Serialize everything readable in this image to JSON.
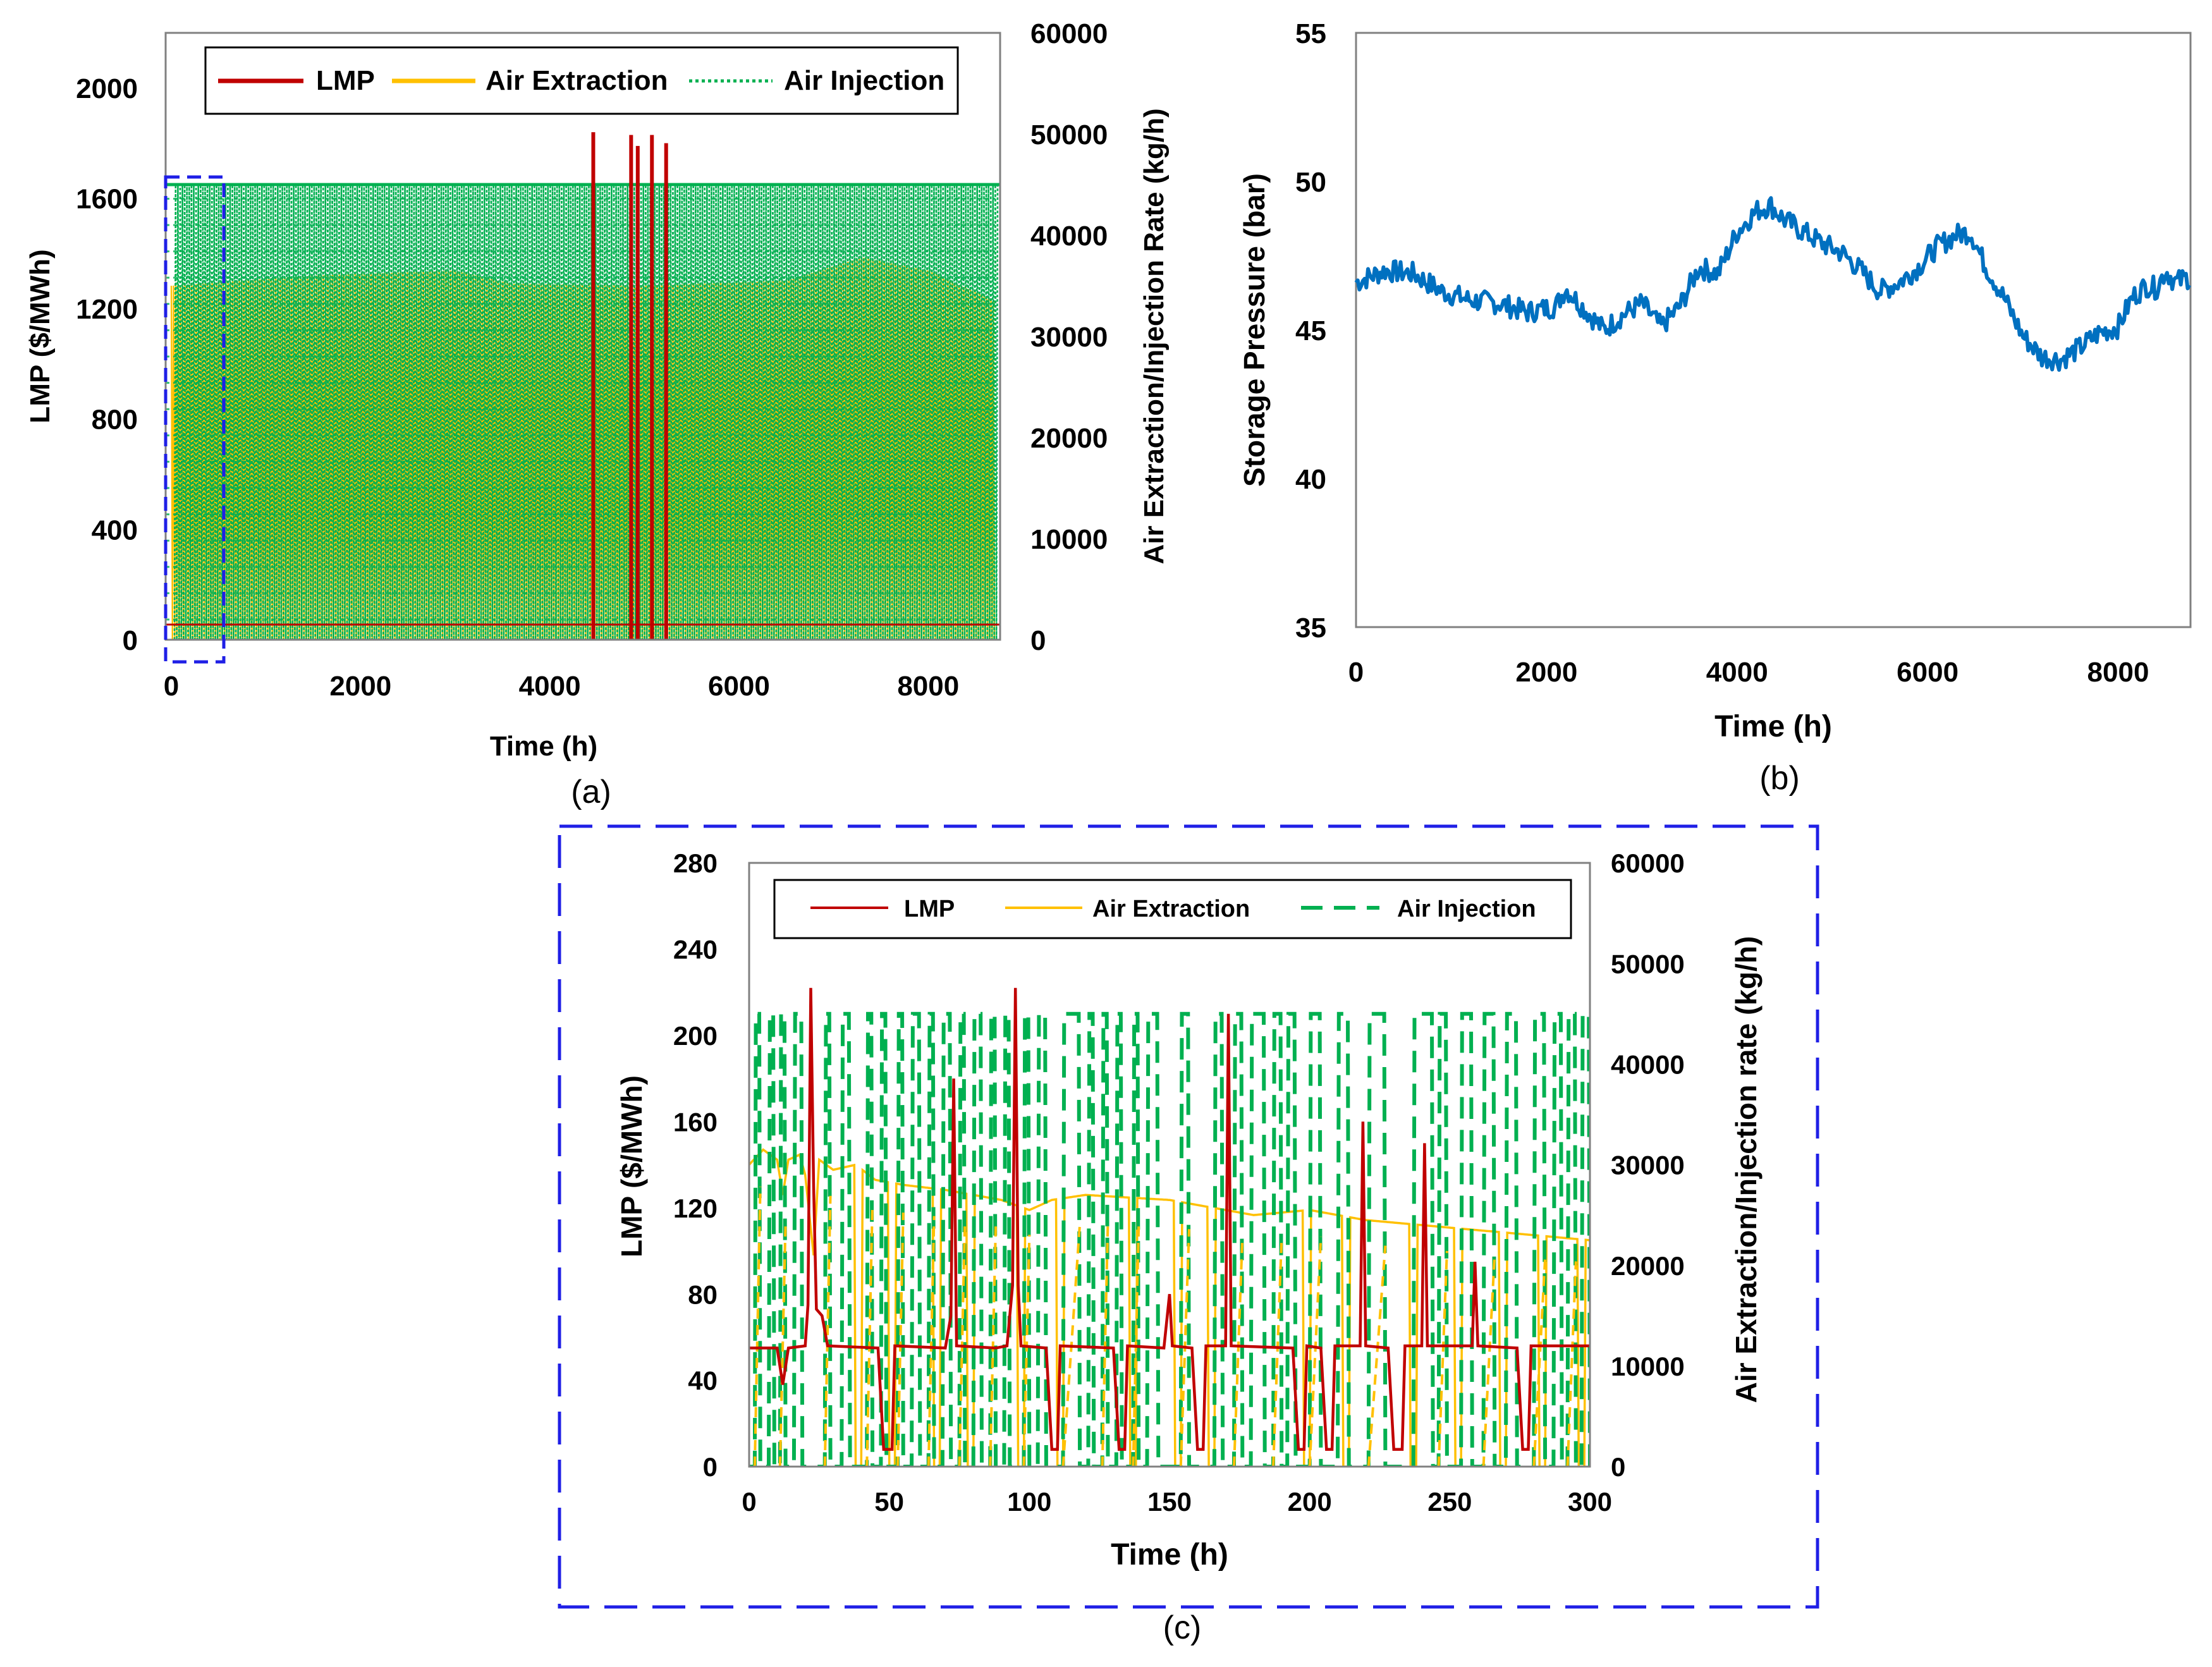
{
  "colors": {
    "lmp": "#c00000",
    "extraction": "#ffc000",
    "injection": "#00b050",
    "pressure": "#0070c0",
    "zoom_box": "#1f1fe6"
  },
  "chart_data": [
    {
      "id": "a",
      "type": "line",
      "caption": "(a)",
      "xlabel": "Time (h)",
      "ylabel": "LMP ($/MWh)",
      "y2label": "Air Extraction/Injection Rate (kg/h)",
      "xlim": [
        -60,
        8760
      ],
      "ylim": [
        0,
        2200
      ],
      "y2lim": [
        0,
        60000
      ],
      "xticks": [
        "0",
        "2000",
        "4000",
        "6000",
        "8000"
      ],
      "yticks": [
        "0",
        "400",
        "800",
        "1200",
        "1600",
        "2000"
      ],
      "y2ticks": [
        "0",
        "10000",
        "20000",
        "30000",
        "40000",
        "50000",
        "60000"
      ],
      "legend": [
        "LMP",
        "Air Extraction",
        "Air Injection"
      ],
      "series": [
        {
          "name": "LMP",
          "axis": "left",
          "baseline": 55,
          "spikes": [
            [
              4460,
              1840
            ],
            [
              4860,
              1830
            ],
            [
              4930,
              1790
            ],
            [
              5080,
              1830
            ],
            [
              5230,
              1800
            ]
          ]
        },
        {
          "name": "Air Extraction",
          "axis": "right",
          "band_max": 35000,
          "envelope": [
            [
              0,
              35000
            ],
            [
              1500,
              36000
            ],
            [
              3000,
              36500
            ],
            [
              3600,
              35200
            ],
            [
              5000,
              35000
            ],
            [
              6500,
              35500
            ],
            [
              7300,
              37800
            ],
            [
              8000,
              36500
            ],
            [
              8700,
              33500
            ]
          ]
        },
        {
          "name": "Air Injection",
          "axis": "right",
          "band_max": 45000,
          "envelope": [
            [
              0,
              45000
            ],
            [
              8760,
              45000
            ]
          ]
        }
      ]
    },
    {
      "id": "b",
      "type": "line",
      "caption": "(b)",
      "xlabel": "Time (h)",
      "ylabel": "Storage Pressure (bar)",
      "xlim": [
        0,
        8760
      ],
      "ylim": [
        35,
        55
      ],
      "xticks": [
        "0",
        "2000",
        "4000",
        "6000",
        "8000"
      ],
      "yticks": [
        "35",
        "40",
        "45",
        "50",
        "55"
      ],
      "series": [
        {
          "name": "Storage Pressure",
          "points": [
            [
              0,
              46.6
            ],
            [
              300,
              47.0
            ],
            [
              600,
              46.9
            ],
            [
              900,
              46.3
            ],
            [
              1200,
              46.0
            ],
            [
              1500,
              45.9
            ],
            [
              1800,
              45.6
            ],
            [
              2100,
              45.8
            ],
            [
              2200,
              46.4
            ],
            [
              2400,
              45.7
            ],
            [
              2600,
              45.0
            ],
            [
              2800,
              45.5
            ],
            [
              3000,
              45.9
            ],
            [
              3200,
              45.1
            ],
            [
              3400,
              45.8
            ],
            [
              3600,
              47.1
            ],
            [
              3800,
              46.9
            ],
            [
              4000,
              48.3
            ],
            [
              4200,
              49.0
            ],
            [
              4350,
              49.2
            ],
            [
              4500,
              48.7
            ],
            [
              4700,
              48.3
            ],
            [
              4900,
              47.9
            ],
            [
              5100,
              47.6
            ],
            [
              5300,
              47.0
            ],
            [
              5500,
              46.3
            ],
            [
              5700,
              46.6
            ],
            [
              5900,
              47.1
            ],
            [
              6100,
              47.8
            ],
            [
              6300,
              48.2
            ],
            [
              6450,
              48.3
            ],
            [
              6600,
              47.2
            ],
            [
              6800,
              46.1
            ],
            [
              7000,
              44.8
            ],
            [
              7200,
              44.1
            ],
            [
              7400,
              44.0
            ],
            [
              7600,
              44.4
            ],
            [
              7800,
              44.9
            ],
            [
              8000,
              45.1
            ],
            [
              8150,
              46.1
            ],
            [
              8300,
              46.5
            ],
            [
              8400,
              46.4
            ],
            [
              8500,
              47.0
            ],
            [
              8600,
              46.6
            ],
            [
              8760,
              46.8
            ]
          ]
        }
      ]
    },
    {
      "id": "c",
      "type": "line",
      "caption": "(c)",
      "xlabel": "Time (h)",
      "ylabel": "LMP ($/MWh)",
      "y2label": "Air Extraction/Injection rate (kg/h)",
      "xlim": [
        0,
        300
      ],
      "ylim": [
        0,
        280
      ],
      "y2lim": [
        0,
        60000
      ],
      "xticks": [
        "0",
        "50",
        "100",
        "150",
        "200",
        "250",
        "300"
      ],
      "yticks": [
        "0",
        "40",
        "80",
        "120",
        "160",
        "200",
        "240",
        "280"
      ],
      "y2ticks": [
        "0",
        "10000",
        "20000",
        "30000",
        "40000",
        "50000",
        "60000"
      ],
      "legend": [
        "LMP",
        "Air Extraction",
        "Air Injection"
      ],
      "series": [
        {
          "name": "LMP",
          "axis": "left",
          "points": [
            [
              0,
              55
            ],
            [
              10,
              55
            ],
            [
              12,
              38
            ],
            [
              14,
              55
            ],
            [
              20,
              56
            ],
            [
              21,
              75
            ],
            [
              22,
              222
            ],
            [
              23,
              130
            ],
            [
              24,
              73
            ],
            [
              26,
              70
            ],
            [
              28,
              56
            ],
            [
              46,
              55
            ],
            [
              48,
              8
            ],
            [
              51,
              8
            ],
            [
              52,
              56
            ],
            [
              70,
              55
            ],
            [
              72,
              70
            ],
            [
              73,
              180
            ],
            [
              74,
              56
            ],
            [
              88,
              55
            ],
            [
              92,
              56
            ],
            [
              94,
              84
            ],
            [
              95,
              222
            ],
            [
              96,
              84
            ],
            [
              97,
              56
            ],
            [
              106,
              55
            ],
            [
              108,
              8
            ],
            [
              110,
              8
            ],
            [
              111,
              56
            ],
            [
              130,
              55
            ],
            [
              132,
              8
            ],
            [
              134,
              8
            ],
            [
              135,
              56
            ],
            [
              148,
              55
            ],
            [
              150,
              80
            ],
            [
              151,
              56
            ],
            [
              158,
              55
            ],
            [
              160,
              8
            ],
            [
              162,
              8
            ],
            [
              163,
              56
            ],
            [
              170,
              56
            ],
            [
              171,
              210
            ],
            [
              172,
              56
            ],
            [
              194,
              55
            ],
            [
              196,
              8
            ],
            [
              198,
              8
            ],
            [
              199,
              56
            ],
            [
              204,
              55
            ],
            [
              206,
              8
            ],
            [
              208,
              8
            ],
            [
              209,
              56
            ],
            [
              218,
              56
            ],
            [
              219,
              160
            ],
            [
              220,
              56
            ],
            [
              228,
              55
            ],
            [
              230,
              8
            ],
            [
              233,
              8
            ],
            [
              234,
              56
            ],
            [
              240,
              56
            ],
            [
              241,
              150
            ],
            [
              242,
              56
            ],
            [
              258,
              56
            ],
            [
              259,
              95
            ],
            [
              260,
              56
            ],
            [
              274,
              55
            ],
            [
              276,
              8
            ],
            [
              278,
              8
            ],
            [
              279,
              56
            ],
            [
              300,
              56
            ]
          ]
        },
        {
          "name": "Air Extraction",
          "axis": "right",
          "envelope": [
            [
              0,
              30000
            ],
            [
              5,
              31500
            ],
            [
              10,
              30500
            ],
            [
              12,
              27000
            ],
            [
              14,
              30500
            ],
            [
              18,
              31000
            ],
            [
              20,
              29000
            ],
            [
              23,
              21000
            ],
            [
              25,
              30500
            ],
            [
              30,
              29500
            ],
            [
              38,
              30000
            ],
            [
              45,
              28500
            ],
            [
              55,
              28000
            ],
            [
              70,
              27500
            ],
            [
              90,
              26500
            ],
            [
              100,
              25500
            ],
            [
              108,
              26500
            ],
            [
              120,
              27000
            ],
            [
              150,
              26500
            ],
            [
              180,
              25000
            ],
            [
              200,
              25500
            ],
            [
              220,
              24500
            ],
            [
              240,
              24000
            ],
            [
              260,
              23500
            ],
            [
              280,
              23000
            ],
            [
              300,
              22500
            ]
          ],
          "drop_to_zero_hours": [
            38,
            50,
            66,
            78,
            96,
            110,
            136,
            152,
            164,
            198,
            212,
            236,
            252,
            268,
            282,
            296
          ]
        },
        {
          "name": "Air Injection",
          "axis": "right",
          "plateau": 45000,
          "pulses": [
            [
              2,
              4
            ],
            [
              7,
              9
            ],
            [
              11,
              13
            ],
            [
              16,
              19
            ],
            [
              27,
              29
            ],
            [
              33,
              36
            ],
            [
              42,
              44
            ],
            [
              47,
              49
            ],
            [
              53,
              55
            ],
            [
              58,
              61
            ],
            [
              64,
              66
            ],
            [
              69,
              72
            ],
            [
              75,
              77
            ],
            [
              80,
              83
            ],
            [
              86,
              88
            ],
            [
              91,
              93
            ],
            [
              98,
              100
            ],
            [
              103,
              106
            ],
            [
              112,
              118
            ],
            [
              121,
              123
            ],
            [
              126,
              128
            ],
            [
              131,
              133
            ],
            [
              137,
              139
            ],
            [
              142,
              146
            ],
            [
              154,
              157
            ],
            [
              166,
              169
            ],
            [
              173,
              176
            ],
            [
              179,
              184
            ],
            [
              187,
              190
            ],
            [
              192,
              195
            ],
            [
              200,
              204
            ],
            [
              210,
              214
            ],
            [
              221,
              227
            ],
            [
              237,
              244
            ],
            [
              246,
              249
            ],
            [
              254,
              258
            ],
            [
              262,
              266
            ],
            [
              270,
              274
            ],
            [
              280,
              284
            ],
            [
              287,
              290
            ],
            [
              292,
              295
            ],
            [
              297,
              300
            ]
          ]
        }
      ]
    }
  ]
}
